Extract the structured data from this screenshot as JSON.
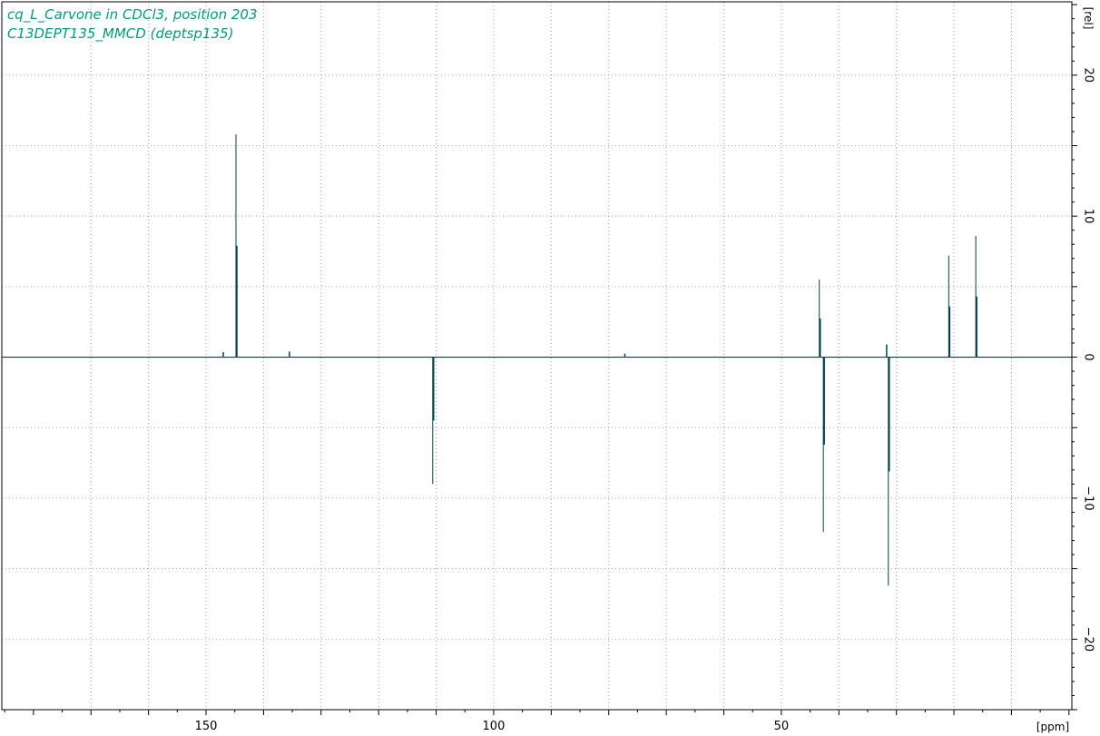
{
  "title_lines": [
    "cq_L_Carvone in CDCl3, position 203",
    "C13DEPT135_MMCD (deptsp135)"
  ],
  "colors": {
    "title": "#009a7a",
    "trace": "#00404a",
    "grid": "#a0a0a0",
    "frame": "#000000"
  },
  "chart_data": {
    "type": "line",
    "xlabel": "[ppm]",
    "ylabel": "[rel]",
    "x_reversed": true,
    "xlim": [
      185.5,
      -0.5
    ],
    "ylim": [
      -25.0,
      25.2
    ],
    "grid": true,
    "x_ticks": [
      150,
      100,
      50
    ],
    "y_ticks": [
      -20,
      -10,
      0,
      10,
      20
    ],
    "x_grid": [
      170,
      160,
      150,
      140,
      130,
      120,
      110,
      100,
      90,
      80,
      70,
      60,
      50,
      40,
      30,
      20,
      10
    ],
    "y_grid": [
      -20,
      -15,
      -10,
      -5,
      0,
      5,
      10,
      15,
      20
    ],
    "peaks": [
      {
        "ppm": 144.8,
        "intensity": 15.8
      },
      {
        "ppm": 110.6,
        "intensity": -9.0
      },
      {
        "ppm": 43.4,
        "intensity": 5.5
      },
      {
        "ppm": 42.7,
        "intensity": -12.4
      },
      {
        "ppm": 31.4,
        "intensity": -16.2
      },
      {
        "ppm": 20.9,
        "intensity": 7.2
      },
      {
        "ppm": 16.2,
        "intensity": 8.6
      },
      {
        "ppm": 147.0,
        "intensity": 0.35
      },
      {
        "ppm": 135.5,
        "intensity": 0.4
      },
      {
        "ppm": 77.2,
        "intensity": 0.25
      },
      {
        "ppm": 31.7,
        "intensity": 0.9
      }
    ]
  }
}
